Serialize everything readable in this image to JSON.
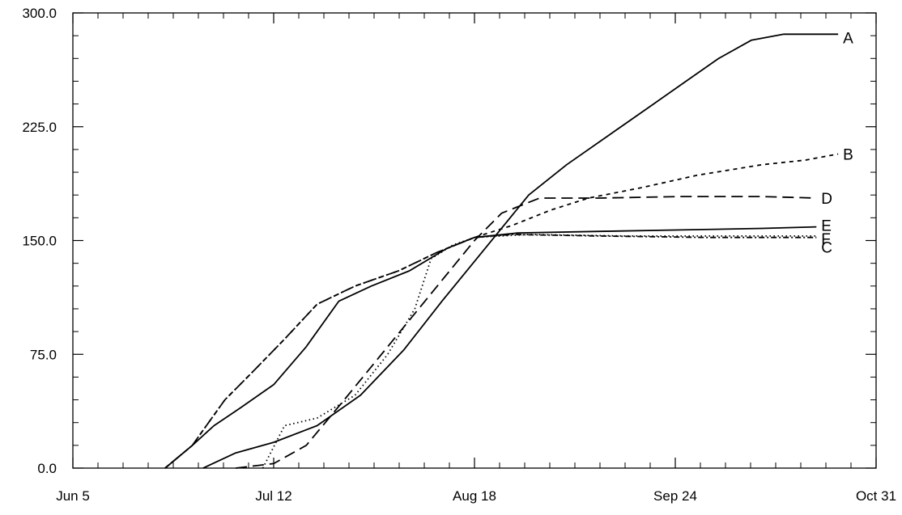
{
  "chart_data": {
    "type": "line",
    "title": "",
    "xlabel": "",
    "ylabel": "",
    "x_ticks": [
      "Jun 5",
      "Jul 12",
      "Aug 18",
      "Sep 24",
      "Oct 31"
    ],
    "y_ticks": [
      "0.0",
      "75.0",
      "150.0",
      "225.0",
      "300.0"
    ],
    "xlim": [
      "Jun 5",
      "Oct 31"
    ],
    "ylim": [
      0,
      300
    ],
    "grid": false,
    "legend": "direct labels at line ends",
    "series": [
      {
        "name": "A",
        "style": "solid",
        "points": [
          [
            "Jun 29",
            0
          ],
          [
            "Jul 5",
            10
          ],
          [
            "Jul 12",
            17
          ],
          [
            "Jul 20",
            28
          ],
          [
            "Jul 28",
            48
          ],
          [
            "Aug 5",
            78
          ],
          [
            "Aug 12",
            110
          ],
          [
            "Aug 20",
            145
          ],
          [
            "Aug 28",
            180
          ],
          [
            "Sep 4",
            200
          ],
          [
            "Sep 12",
            220
          ],
          [
            "Sep 20",
            240
          ],
          [
            "Sep 26",
            255
          ],
          [
            "Oct 2",
            270
          ],
          [
            "Oct 8",
            282
          ],
          [
            "Oct 14",
            286
          ],
          [
            "Oct 24",
            286
          ]
        ]
      },
      {
        "name": "B",
        "style": "short-dash",
        "points": [
          [
            "Jun 22",
            0
          ],
          [
            "Jun 27",
            15
          ],
          [
            "Jun 30",
            30
          ],
          [
            "Jul 3",
            45
          ],
          [
            "Jul 8",
            63
          ],
          [
            "Jul 14",
            85
          ],
          [
            "Jul 20",
            108
          ],
          [
            "Jul 27",
            120
          ],
          [
            "Aug 4",
            130
          ],
          [
            "Aug 11",
            142
          ],
          [
            "Aug 18",
            152
          ],
          [
            "Aug 25",
            160
          ],
          [
            "Sep 1",
            170
          ],
          [
            "Sep 8",
            178
          ],
          [
            "Sep 18",
            185
          ],
          [
            "Sep 28",
            193
          ],
          [
            "Oct 10",
            200
          ],
          [
            "Oct 18",
            203
          ],
          [
            "Oct 24",
            207
          ]
        ]
      },
      {
        "name": "C",
        "style": "dash-dot",
        "points": [
          [
            "Jun 22",
            0
          ],
          [
            "Jun 27",
            15
          ],
          [
            "Jun 30",
            30
          ],
          [
            "Jul 3",
            45
          ],
          [
            "Jul 8",
            63
          ],
          [
            "Jul 14",
            85
          ],
          [
            "Jul 20",
            108
          ],
          [
            "Jul 27",
            120
          ],
          [
            "Aug 4",
            130
          ],
          [
            "Aug 11",
            142
          ],
          [
            "Aug 18",
            152
          ],
          [
            "Aug 25",
            154
          ],
          [
            "Sep 10",
            153
          ],
          [
            "Sep 30",
            152
          ],
          [
            "Oct 20",
            152
          ]
        ]
      },
      {
        "name": "D",
        "style": "long-dash",
        "points": [
          [
            "Jul 5",
            0
          ],
          [
            "Jul 12",
            3
          ],
          [
            "Jul 18",
            15
          ],
          [
            "Jul 25",
            45
          ],
          [
            "Aug 2",
            80
          ],
          [
            "Aug 10",
            115
          ],
          [
            "Aug 18",
            150
          ],
          [
            "Aug 23",
            168
          ],
          [
            "Aug 30",
            178
          ],
          [
            "Sep 10",
            178
          ],
          [
            "Sep 25",
            179
          ],
          [
            "Oct 10",
            179
          ],
          [
            "Oct 20",
            178
          ]
        ]
      },
      {
        "name": "E",
        "style": "solid",
        "points": [
          [
            "Jun 22",
            0
          ],
          [
            "Jun 27",
            15
          ],
          [
            "Jul 1",
            28
          ],
          [
            "Jul 6",
            40
          ],
          [
            "Jul 12",
            55
          ],
          [
            "Jul 18",
            80
          ],
          [
            "Jul 24",
            110
          ],
          [
            "Jul 30",
            120
          ],
          [
            "Aug 6",
            130
          ],
          [
            "Aug 13",
            145
          ],
          [
            "Aug 18",
            152
          ],
          [
            "Aug 26",
            155
          ],
          [
            "Sep 10",
            156
          ],
          [
            "Sep 25",
            157
          ],
          [
            "Oct 10",
            158
          ],
          [
            "Oct 20",
            159
          ]
        ]
      },
      {
        "name": "F",
        "style": "dotted",
        "points": [
          [
            "Jul 10",
            0
          ],
          [
            "Jul 14",
            28
          ],
          [
            "Jul 20",
            33
          ],
          [
            "Jul 27",
            48
          ],
          [
            "Aug 2",
            75
          ],
          [
            "Aug 7",
            105
          ],
          [
            "Aug 10",
            138
          ],
          [
            "Aug 14",
            147
          ],
          [
            "Aug 18",
            152
          ],
          [
            "Aug 28",
            154
          ],
          [
            "Sep 15",
            153
          ],
          [
            "Oct 1",
            153
          ],
          [
            "Oct 20",
            153
          ]
        ]
      }
    ],
    "colors": {
      "line": "#000000",
      "background": "#ffffff"
    }
  }
}
